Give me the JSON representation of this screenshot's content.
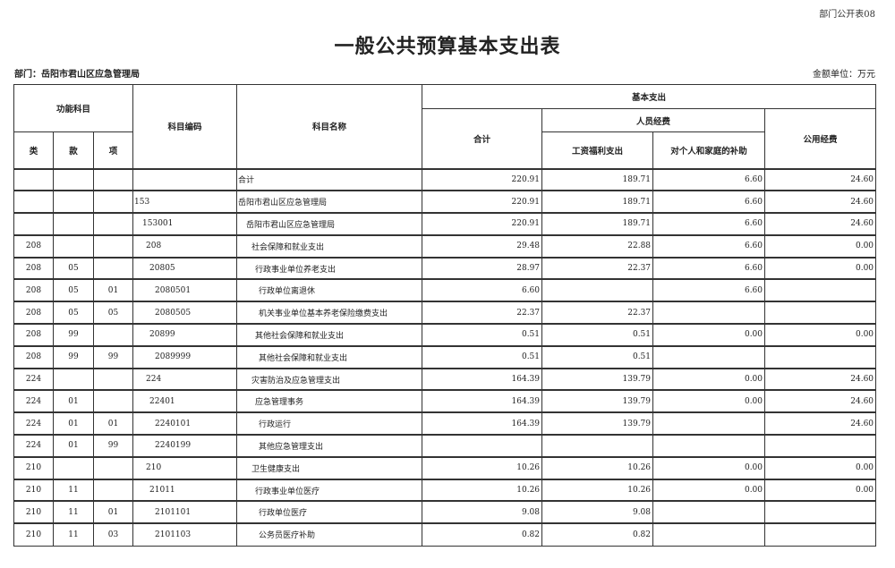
{
  "form_number": "部门公开表08",
  "title": "一般公共预算基本支出表",
  "department": "部门：岳阳市君山区应急管理局",
  "unit": "金额单位：万元",
  "headers": {
    "function_subject": "功能科目",
    "lei": "类",
    "kuan": "款",
    "xiang": "项",
    "subject_code": "科目编码",
    "subject_name": "科目名称",
    "basic_expenditure": "基本支出",
    "total": "合计",
    "personnel": "人员经费",
    "salary_welfare": "工资福利支出",
    "subsidy_individuals": "对个人和家庭的补助",
    "public_expense": "公用经费"
  },
  "rows": [
    {
      "lei": "",
      "kuan": "",
      "xiang": "",
      "code": "",
      "name": "合计",
      "level": 0,
      "total": "220.91",
      "salary": "189.71",
      "subsidy": "6.60",
      "public": "24.60"
    },
    {
      "lei": "",
      "kuan": "",
      "xiang": "",
      "code": "153",
      "name": "岳阳市君山区应急管理局",
      "level": 0,
      "total": "220.91",
      "salary": "189.71",
      "subsidy": "6.60",
      "public": "24.60"
    },
    {
      "lei": "",
      "kuan": "",
      "xiang": "",
      "code": "153001",
      "name": "岳阳市君山区应急管理局",
      "level": 1,
      "total": "220.91",
      "salary": "189.71",
      "subsidy": "6.60",
      "public": "24.60"
    },
    {
      "lei": "208",
      "kuan": "",
      "xiang": "",
      "code": "208",
      "name": "社会保障和就业支出",
      "level": 2,
      "total": "29.48",
      "salary": "22.88",
      "subsidy": "6.60",
      "public": "0.00"
    },
    {
      "lei": "208",
      "kuan": "05",
      "xiang": "",
      "code": "20805",
      "name": "行政事业单位养老支出",
      "level": 3,
      "total": "28.97",
      "salary": "22.37",
      "subsidy": "6.60",
      "public": "0.00"
    },
    {
      "lei": "208",
      "kuan": "05",
      "xiang": "01",
      "code": "2080501",
      "name": "行政单位离退休",
      "level": 4,
      "total": "6.60",
      "salary": "",
      "subsidy": "6.60",
      "public": ""
    },
    {
      "lei": "208",
      "kuan": "05",
      "xiang": "05",
      "code": "2080505",
      "name": "机关事业单位基本养老保险缴费支出",
      "level": 4,
      "total": "22.37",
      "salary": "22.37",
      "subsidy": "",
      "public": ""
    },
    {
      "lei": "208",
      "kuan": "99",
      "xiang": "",
      "code": "20899",
      "name": "其他社会保障和就业支出",
      "level": 3,
      "total": "0.51",
      "salary": "0.51",
      "subsidy": "0.00",
      "public": "0.00"
    },
    {
      "lei": "208",
      "kuan": "99",
      "xiang": "99",
      "code": "2089999",
      "name": "其他社会保障和就业支出",
      "level": 4,
      "total": "0.51",
      "salary": "0.51",
      "subsidy": "",
      "public": ""
    },
    {
      "lei": "224",
      "kuan": "",
      "xiang": "",
      "code": "224",
      "name": "灾害防治及应急管理支出",
      "level": 2,
      "total": "164.39",
      "salary": "139.79",
      "subsidy": "0.00",
      "public": "24.60"
    },
    {
      "lei": "224",
      "kuan": "01",
      "xiang": "",
      "code": "22401",
      "name": "应急管理事务",
      "level": 3,
      "total": "164.39",
      "salary": "139.79",
      "subsidy": "0.00",
      "public": "24.60"
    },
    {
      "lei": "224",
      "kuan": "01",
      "xiang": "01",
      "code": "2240101",
      "name": "行政运行",
      "level": 4,
      "total": "164.39",
      "salary": "139.79",
      "subsidy": "",
      "public": "24.60"
    },
    {
      "lei": "224",
      "kuan": "01",
      "xiang": "99",
      "code": "2240199",
      "name": "其他应急管理支出",
      "level": 4,
      "total": "",
      "salary": "",
      "subsidy": "",
      "public": ""
    },
    {
      "lei": "210",
      "kuan": "",
      "xiang": "",
      "code": "210",
      "name": "卫生健康支出",
      "level": 2,
      "total": "10.26",
      "salary": "10.26",
      "subsidy": "0.00",
      "public": "0.00"
    },
    {
      "lei": "210",
      "kuan": "11",
      "xiang": "",
      "code": "21011",
      "name": "行政事业单位医疗",
      "level": 3,
      "total": "10.26",
      "salary": "10.26",
      "subsidy": "0.00",
      "public": "0.00"
    },
    {
      "lei": "210",
      "kuan": "11",
      "xiang": "01",
      "code": "2101101",
      "name": "行政单位医疗",
      "level": 4,
      "total": "9.08",
      "salary": "9.08",
      "subsidy": "",
      "public": ""
    },
    {
      "lei": "210",
      "kuan": "11",
      "xiang": "03",
      "code": "2101103",
      "name": "公务员医疗补助",
      "level": 4,
      "total": "0.82",
      "salary": "0.82",
      "subsidy": "",
      "public": ""
    }
  ]
}
